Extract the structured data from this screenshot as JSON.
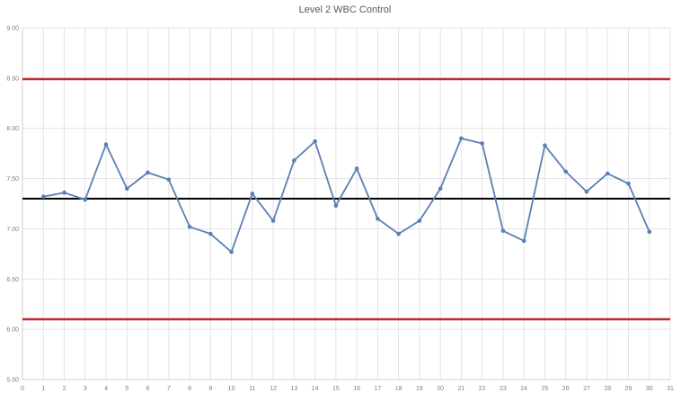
{
  "chart_data": {
    "type": "line",
    "title": "Level  2 WBC Control",
    "xlabel": "",
    "ylabel": "",
    "xlim": [
      0,
      31
    ],
    "ylim": [
      5.5,
      9.0
    ],
    "x_ticks": [
      "0",
      "1",
      "2",
      "3",
      "4",
      "5",
      "6",
      "7",
      "8",
      "9",
      "10",
      "11",
      "12",
      "13",
      "14",
      "15",
      "16",
      "17",
      "18",
      "19",
      "20",
      "21",
      "22",
      "23",
      "24",
      "25",
      "26",
      "27",
      "28",
      "29",
      "30",
      "31"
    ],
    "y_ticks": [
      "5.50",
      "6.00",
      "6.50",
      "7.00",
      "7.50",
      "8.00",
      "8.50",
      "9.00"
    ],
    "grid": true,
    "legend": "none",
    "series": [
      {
        "name": "WBC",
        "color": "#5b7fb5",
        "x": [
          1,
          2,
          3,
          4,
          5,
          6,
          7,
          8,
          9,
          10,
          11,
          12,
          13,
          14,
          15,
          16,
          17,
          18,
          19,
          20,
          21,
          22,
          23,
          24,
          25,
          26,
          27,
          28,
          29,
          30
        ],
        "values": [
          7.32,
          7.36,
          7.29,
          7.84,
          7.4,
          7.56,
          7.49,
          7.02,
          6.95,
          6.77,
          7.35,
          7.08,
          7.68,
          7.87,
          7.23,
          7.6,
          7.1,
          6.95,
          7.08,
          7.4,
          7.9,
          7.85,
          6.98,
          6.88,
          7.83,
          7.57,
          7.37,
          7.55,
          7.45,
          6.97
        ]
      }
    ],
    "reference_lines": [
      {
        "name": "upper-limit",
        "value": 8.49,
        "color": "#c0282d"
      },
      {
        "name": "mean",
        "value": 7.3,
        "color": "#000000"
      },
      {
        "name": "lower-limit",
        "value": 6.1,
        "color": "#c0282d"
      }
    ]
  }
}
